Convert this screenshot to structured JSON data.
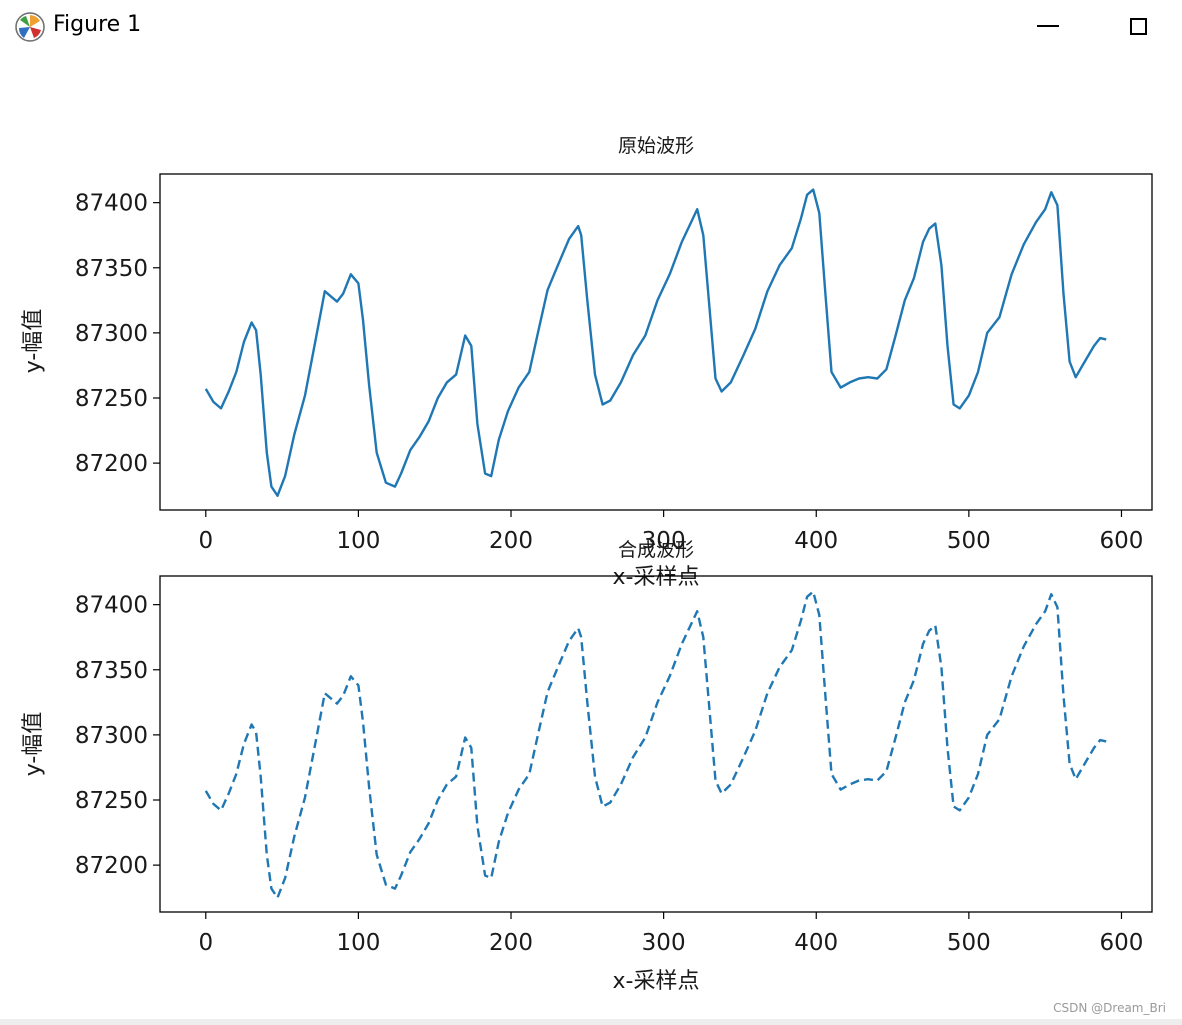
{
  "window": {
    "title": "Figure 1",
    "icons": {
      "app": "matplotlib-icon",
      "minimize": "minimize-icon",
      "maximize": "maximize-icon"
    }
  },
  "watermark": "CSDN @Dream_Bri",
  "colors": {
    "line": "#1f77b4",
    "axes": "#000000"
  },
  "chart_data": [
    {
      "type": "line",
      "title": "原始波形",
      "xlabel": "x-采样点",
      "ylabel": "y-幅值",
      "linestyle": "solid",
      "xlim": [
        -30,
        620
      ],
      "ylim": [
        87164,
        87422
      ],
      "xticks": [
        0,
        100,
        200,
        300,
        400,
        500,
        600
      ],
      "yticks": [
        87200,
        87250,
        87300,
        87350,
        87400
      ],
      "grid": false,
      "legend": "none",
      "series": [
        {
          "x": [
            0,
            5,
            10,
            15,
            20,
            25,
            30,
            33,
            36,
            40,
            43,
            47,
            52,
            58,
            65,
            72,
            78,
            82,
            86,
            90,
            95,
            100,
            103,
            107,
            112,
            118,
            124,
            128,
            134,
            140,
            146,
            152,
            158,
            164,
            170,
            174,
            178,
            183,
            187,
            192,
            198,
            205,
            212,
            218,
            224,
            230,
            238,
            244,
            246,
            250,
            255,
            260,
            265,
            272,
            280,
            288,
            296,
            304,
            312,
            318,
            322,
            326,
            330,
            334,
            338,
            344,
            352,
            360,
            368,
            376,
            384,
            390,
            394,
            398,
            402,
            406,
            410,
            416,
            422,
            428,
            434,
            440,
            446,
            452,
            458,
            464,
            470,
            474,
            478,
            482,
            486,
            490,
            494,
            500,
            506,
            512,
            520,
            528,
            536,
            544,
            550,
            554,
            558,
            562,
            566,
            570,
            576,
            582,
            586,
            590
          ],
          "y": [
            87257,
            87247,
            87242,
            87255,
            87270,
            87293,
            87308,
            87302,
            87268,
            87208,
            87182,
            87175,
            87190,
            87222,
            87252,
            87295,
            87332,
            87328,
            87324,
            87330,
            87345,
            87338,
            87310,
            87260,
            87208,
            87185,
            87182,
            87192,
            87210,
            87220,
            87232,
            87250,
            87262,
            87268,
            87298,
            87290,
            87230,
            87192,
            87190,
            87218,
            87240,
            87258,
            87270,
            87302,
            87333,
            87350,
            87372,
            87382,
            87375,
            87325,
            87268,
            87245,
            87248,
            87262,
            87283,
            87298,
            87325,
            87345,
            87370,
            87385,
            87395,
            87375,
            87320,
            87265,
            87255,
            87262,
            87282,
            87303,
            87332,
            87352,
            87365,
            87388,
            87406,
            87410,
            87392,
            87330,
            87270,
            87258,
            87262,
            87265,
            87266,
            87265,
            87272,
            87298,
            87325,
            87342,
            87370,
            87380,
            87384,
            87352,
            87290,
            87245,
            87242,
            87252,
            87270,
            87300,
            87312,
            87345,
            87368,
            87385,
            87395,
            87408,
            87398,
            87330,
            87278,
            87266,
            87278,
            87290,
            87296,
            87295
          ]
        }
      ]
    },
    {
      "type": "line",
      "title": "合成波形",
      "xlabel": "x-采样点",
      "ylabel": "y-幅值",
      "linestyle": "dashed",
      "xlim": [
        -30,
        620
      ],
      "ylim": [
        87164,
        87422
      ],
      "xticks": [
        0,
        100,
        200,
        300,
        400,
        500,
        600
      ],
      "yticks": [
        87200,
        87250,
        87300,
        87350,
        87400
      ],
      "grid": false,
      "legend": "none",
      "series": [
        {
          "x": [
            0,
            5,
            10,
            15,
            20,
            25,
            30,
            33,
            36,
            40,
            43,
            47,
            52,
            58,
            65,
            72,
            78,
            82,
            86,
            90,
            95,
            100,
            103,
            107,
            112,
            118,
            124,
            128,
            134,
            140,
            146,
            152,
            158,
            164,
            170,
            174,
            178,
            183,
            187,
            192,
            198,
            205,
            212,
            218,
            224,
            230,
            238,
            244,
            246,
            250,
            255,
            260,
            265,
            272,
            280,
            288,
            296,
            304,
            312,
            318,
            322,
            326,
            330,
            334,
            338,
            344,
            352,
            360,
            368,
            376,
            384,
            390,
            394,
            398,
            402,
            406,
            410,
            416,
            422,
            428,
            434,
            440,
            446,
            452,
            458,
            464,
            470,
            474,
            478,
            482,
            486,
            490,
            494,
            500,
            506,
            512,
            520,
            528,
            536,
            544,
            550,
            554,
            558,
            562,
            566,
            570,
            576,
            582,
            586,
            590
          ],
          "y": [
            87257,
            87247,
            87242,
            87255,
            87270,
            87293,
            87308,
            87302,
            87268,
            87208,
            87182,
            87175,
            87190,
            87222,
            87252,
            87295,
            87332,
            87328,
            87324,
            87330,
            87345,
            87338,
            87310,
            87260,
            87208,
            87185,
            87182,
            87192,
            87210,
            87220,
            87232,
            87250,
            87262,
            87268,
            87298,
            87290,
            87230,
            87192,
            87190,
            87218,
            87240,
            87258,
            87270,
            87302,
            87333,
            87350,
            87372,
            87382,
            87375,
            87325,
            87268,
            87245,
            87248,
            87262,
            87283,
            87298,
            87325,
            87345,
            87370,
            87385,
            87395,
            87375,
            87320,
            87265,
            87255,
            87262,
            87282,
            87303,
            87332,
            87352,
            87365,
            87388,
            87406,
            87410,
            87392,
            87330,
            87270,
            87258,
            87262,
            87265,
            87266,
            87265,
            87272,
            87298,
            87325,
            87342,
            87370,
            87380,
            87384,
            87352,
            87290,
            87245,
            87242,
            87252,
            87270,
            87300,
            87312,
            87345,
            87368,
            87385,
            87395,
            87408,
            87398,
            87330,
            87278,
            87266,
            87278,
            87290,
            87296,
            87295
          ]
        }
      ]
    }
  ]
}
